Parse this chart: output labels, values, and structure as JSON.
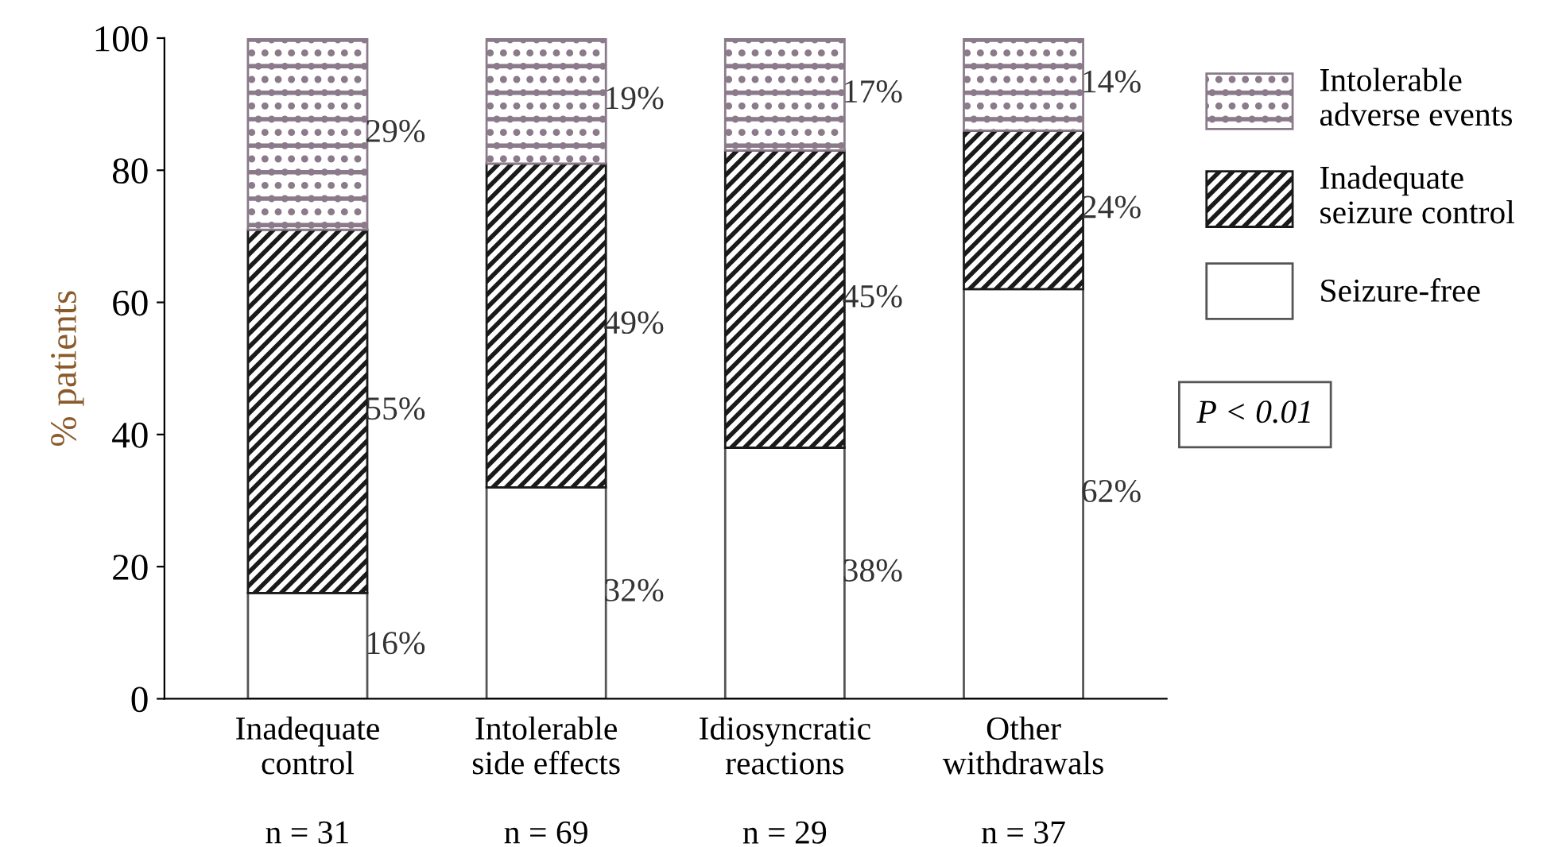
{
  "chart_data": {
    "type": "bar",
    "stacked": true,
    "ylabel": "% patients",
    "categories": [
      "Inadequate\ncontrol\n\nn = 31",
      "Intolerable\nside effects\n\nn = 69",
      "Idiosyncratic\nreactions\n\nn = 29",
      "Other\nwithdrawals\n\nn = 37"
    ],
    "series": [
      {
        "name": "Seizure-free",
        "color": "#ffffff",
        "values": [
          16,
          32,
          38,
          62
        ],
        "value_labels": [
          "16%",
          "32%",
          "38%",
          "62%"
        ]
      },
      {
        "name": "Inadequate\nseizure control",
        "color": "#1a1a1a",
        "values": [
          55,
          49,
          45,
          24
        ],
        "value_labels": [
          "55%",
          "49%",
          "45%",
          "24%"
        ]
      },
      {
        "name": "Intolerable\nadverse events",
        "color": "#8a7a8a",
        "values": [
          29,
          19,
          17,
          14
        ],
        "value_labels": [
          "29%",
          "19%",
          "17%",
          "14%"
        ]
      }
    ],
    "ylim": [
      0,
      100
    ],
    "yticks": [
      0,
      20,
      40,
      60,
      80,
      100
    ],
    "grid": false,
    "legend": "right",
    "annotations": [
      "P < 0.01"
    ]
  }
}
